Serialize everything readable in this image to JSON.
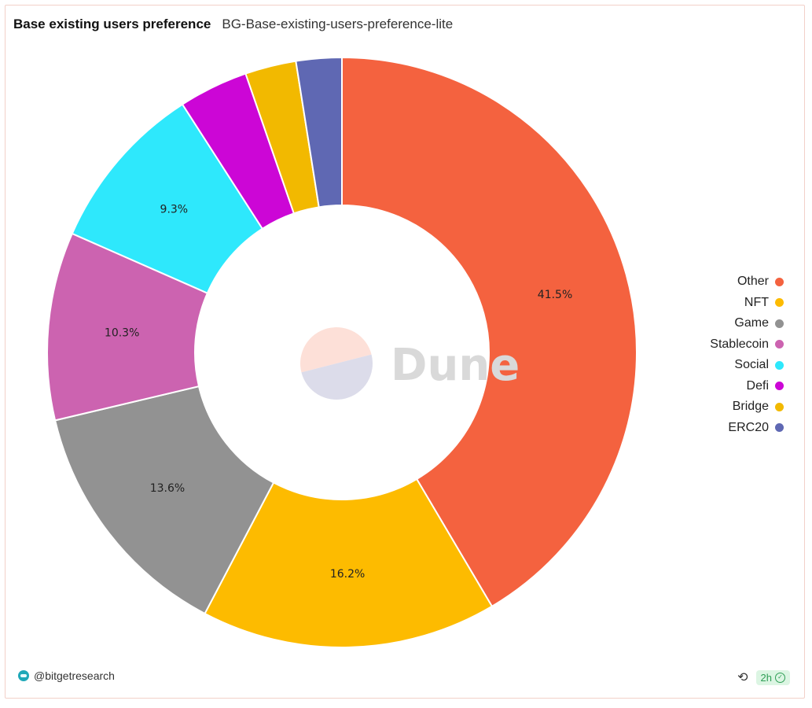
{
  "header": {
    "title": "Base existing users preference",
    "subtitle": "BG-Base-existing-users-preference-lite"
  },
  "watermark": {
    "text": "Dune",
    "logo_colors": [
      "#fde0d8",
      "#dcdcea"
    ]
  },
  "chart_data": {
    "type": "pie",
    "donut": true,
    "title": "Base existing users preference",
    "slices": [
      {
        "name": "Other",
        "value": 41.5,
        "label": "41.5%",
        "color": "#f4623f"
      },
      {
        "name": "NFT",
        "value": 16.2,
        "label": "16.2%",
        "color": "#fdbb00"
      },
      {
        "name": "Game",
        "value": 13.6,
        "label": "13.6%",
        "color": "#929292"
      },
      {
        "name": "Stablecoin",
        "value": 10.3,
        "label": "10.3%",
        "color": "#cc63b0"
      },
      {
        "name": "Social",
        "value": 9.3,
        "label": "9.3%",
        "color": "#2ee8fc"
      },
      {
        "name": "Defi",
        "value": 3.8,
        "label": "",
        "color": "#cc06d6"
      },
      {
        "name": "Bridge",
        "value": 2.8,
        "label": "",
        "color": "#f2b900"
      },
      {
        "name": "ERC20",
        "value": 2.5,
        "label": "",
        "color": "#5f68b3"
      }
    ],
    "legend_position": "right"
  },
  "footer": {
    "author": "@bitgetresearch",
    "refresh_icon": "refresh-icon",
    "age_badge": "2h",
    "check_icon": "check-circle-icon"
  }
}
